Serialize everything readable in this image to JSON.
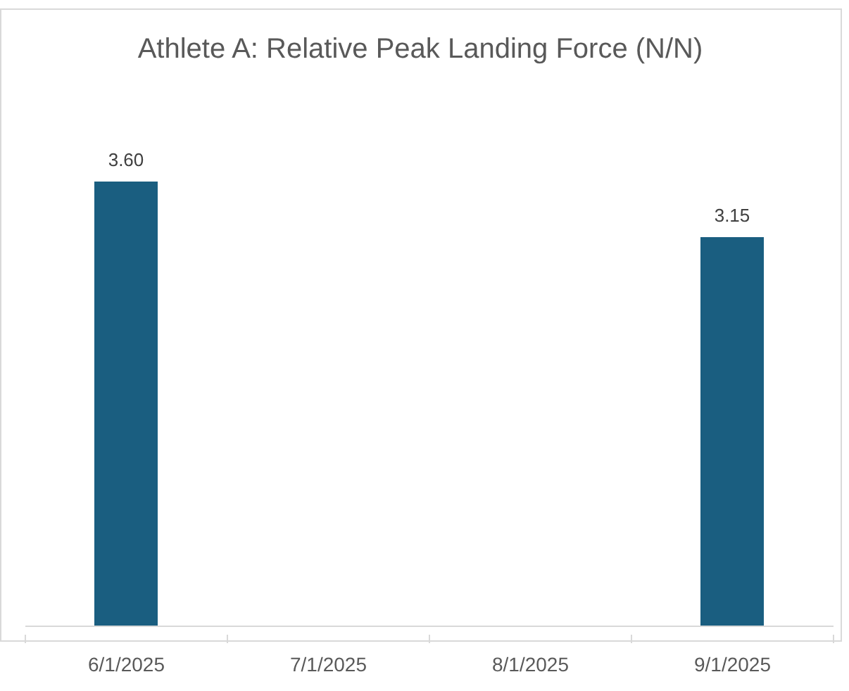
{
  "chart_data": {
    "type": "bar",
    "title": "Athlete A: Relative Peak Landing Force (N/N)",
    "categories": [
      "6/1/2025",
      "7/1/2025",
      "8/1/2025",
      "9/1/2025"
    ],
    "values": [
      3.6,
      null,
      null,
      3.15
    ],
    "value_labels": [
      "3.60",
      null,
      null,
      "3.15"
    ],
    "color": "#1a5e80"
  }
}
